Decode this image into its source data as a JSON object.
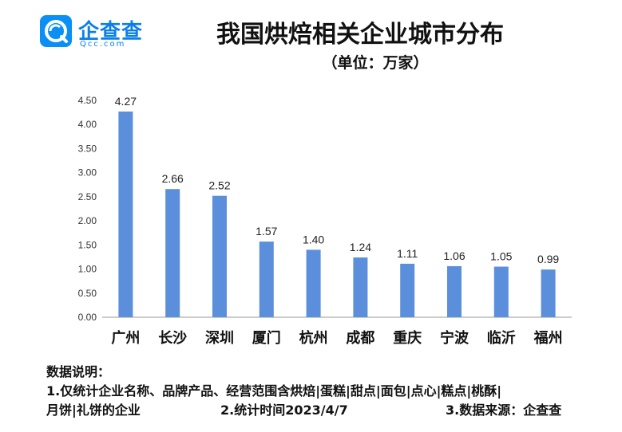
{
  "logo": {
    "name": "企查查",
    "domain": "Qcc.com",
    "icon": "qcc-logo-icon",
    "color": "#0a8ff5"
  },
  "title": "我国烘焙相关企业城市分布",
  "unit": "（单位：万家）",
  "chart_data": {
    "type": "bar",
    "categories": [
      "广州",
      "长沙",
      "深圳",
      "厦门",
      "杭州",
      "成都",
      "重庆",
      "宁波",
      "临沂",
      "福州"
    ],
    "values": [
      4.27,
      2.66,
      2.52,
      1.57,
      1.4,
      1.24,
      1.11,
      1.06,
      1.05,
      0.99
    ],
    "value_labels": [
      "4.27",
      "2.66",
      "2.52",
      "1.57",
      "1.40",
      "1.24",
      "1.11",
      "1.06",
      "1.05",
      "0.99"
    ],
    "y_ticks": [
      "0.00",
      "0.50",
      "1.00",
      "1.50",
      "2.00",
      "2.50",
      "3.00",
      "3.50",
      "4.00",
      "4.50"
    ],
    "ylim": [
      0,
      4.5
    ],
    "grid": false,
    "bar_color": "#5b8fdb",
    "axis_color": "#999999"
  },
  "notes": {
    "heading": "数据说明：",
    "line1": "1.仅统计企业名称、品牌产品、经营范围含烘焙|蛋糕|甜点|面包|点心|糕点|桃酥|",
    "line2_a": "月饼|礼饼的企业",
    "line2_b": "2.统计时间2023/4/7",
    "line2_c": "3.数据来源：企查查"
  }
}
